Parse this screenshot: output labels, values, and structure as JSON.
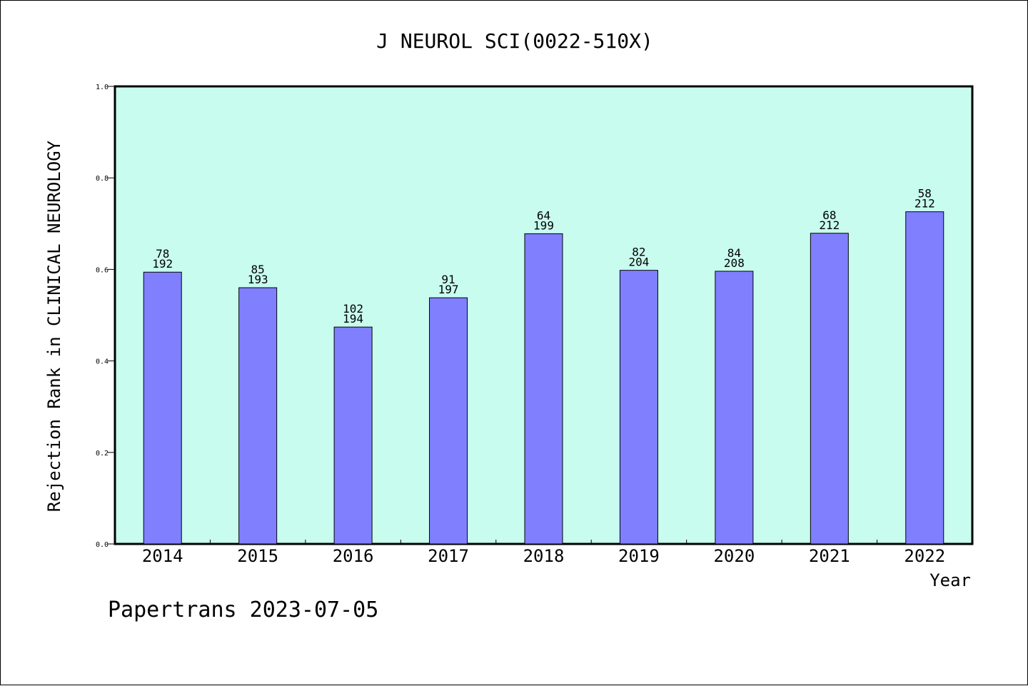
{
  "chart_data": {
    "type": "bar",
    "title": "J NEUROL SCI(0022-510X)",
    "xlabel": "Year",
    "ylabel": "Rejection Rank in CLINICAL NEUROLOGY",
    "categories": [
      "2014",
      "2015",
      "2016",
      "2017",
      "2018",
      "2019",
      "2020",
      "2021",
      "2022"
    ],
    "values": [
      0.594,
      0.56,
      0.474,
      0.538,
      0.678,
      0.598,
      0.596,
      0.679,
      0.726
    ],
    "annotations": [
      {
        "top": "78",
        "bottom": "192"
      },
      {
        "top": "85",
        "bottom": "193"
      },
      {
        "top": "102",
        "bottom": "194"
      },
      {
        "top": "91",
        "bottom": "197"
      },
      {
        "top": "64",
        "bottom": "199"
      },
      {
        "top": "82",
        "bottom": "204"
      },
      {
        "top": "84",
        "bottom": "208"
      },
      {
        "top": "68",
        "bottom": "212"
      },
      {
        "top": "58",
        "bottom": "212"
      }
    ],
    "ylim": [
      0,
      1
    ],
    "yticks": [
      "0.0",
      "0.2",
      "0.4",
      "0.6",
      "0.8",
      "1.0"
    ],
    "grid": false,
    "colors": {
      "bar": "#8080ff",
      "plot_background": "#c8fcee",
      "border": "#000000"
    }
  },
  "footer": "Papertrans 2023-07-05"
}
